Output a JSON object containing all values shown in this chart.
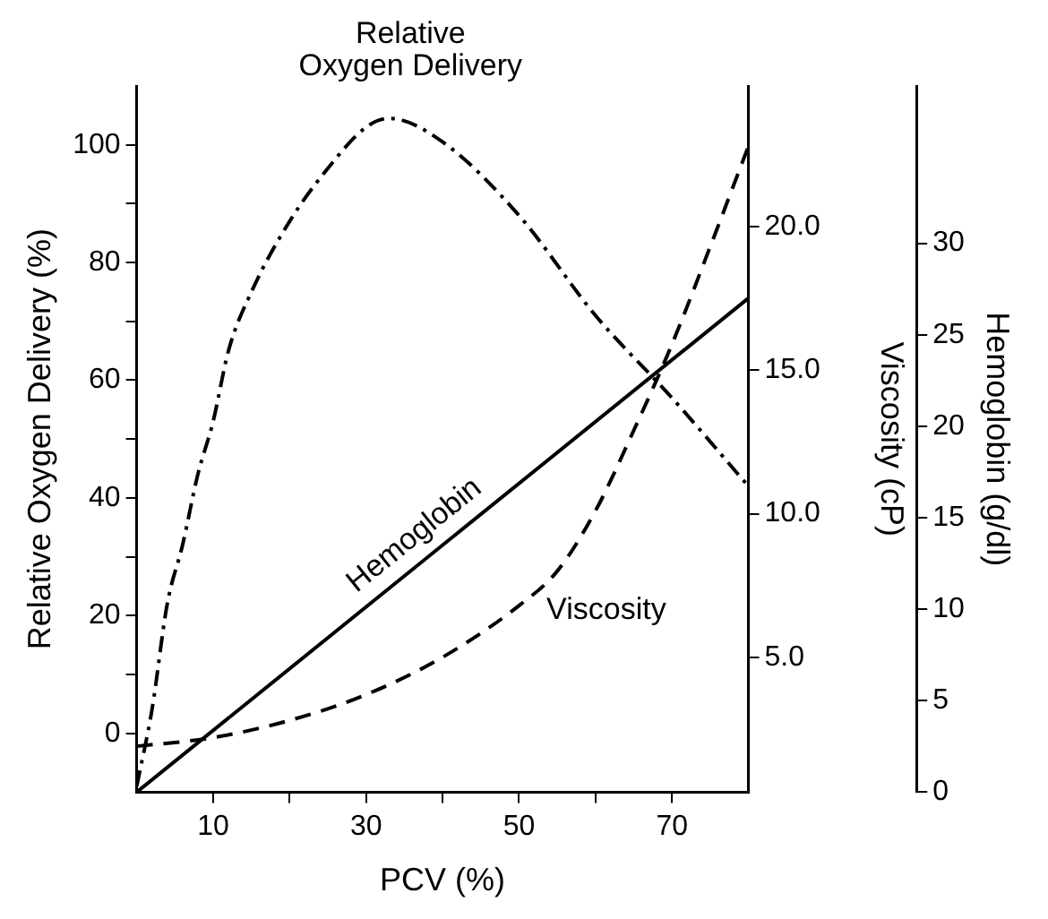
{
  "chart_data": {
    "type": "line",
    "xlabel": "PCV (%)",
    "ylabel": "Relative Oxygen Delivery (%)",
    "y2label": "Viscosity (cP)",
    "y3label": "Hemoglobin (g/dl)",
    "xlim": [
      0,
      80
    ],
    "xticks": [
      10,
      {
        "value": 20,
        "label": null
      },
      30,
      {
        "value": 40,
        "label": null
      },
      50,
      {
        "value": 60,
        "label": null
      },
      70
    ],
    "ylim": [
      -10,
      110
    ],
    "yticks": [
      0,
      {
        "value": 10,
        "label": null
      },
      20,
      {
        "value": 30,
        "label": null
      },
      40,
      {
        "value": 50,
        "label": null
      },
      60,
      {
        "value": 70,
        "label": null
      },
      80,
      {
        "value": 90,
        "label": null
      },
      100
    ],
    "y2lim": [
      0.3,
      24.9
    ],
    "y2ticks": [
      {
        "value": 5,
        "label": "5.0"
      },
      {
        "value": 10,
        "label": "10.0"
      },
      {
        "value": 15,
        "label": "15.0"
      },
      {
        "value": 20,
        "label": "20.0"
      }
    ],
    "y3lim": [
      0,
      38.6
    ],
    "y3ticks": [
      0,
      5,
      10,
      15,
      20,
      25,
      30
    ],
    "grid": false,
    "legend": false,
    "marker": "none",
    "series": [
      {
        "name": "Relative Oxygen Delivery",
        "color": "#000000",
        "line_style": "dashdot",
        "x": [
          0,
          2,
          4,
          6,
          8,
          10,
          12,
          15,
          20,
          25,
          30,
          33,
          40,
          50,
          60,
          70,
          80
        ],
        "values": [
          -9,
          4,
          22,
          32,
          44,
          53,
          65,
          75,
          87,
          96,
          103,
          104.5,
          100.5,
          88,
          71,
          57,
          42
        ]
      },
      {
        "name": "Hemoglobin",
        "color": "#000000",
        "line_style": "solid",
        "axis": "y3",
        "x": [
          0,
          80
        ],
        "values": [
          0,
          27
        ]
      },
      {
        "name": "Viscosity",
        "color": "#000000",
        "line_style": "dashed",
        "axis": "y2",
        "x": [
          0,
          10,
          20,
          30,
          40,
          50,
          55,
          60,
          65,
          70,
          75,
          80
        ],
        "values": [
          1.9,
          2.2,
          2.8,
          3.7,
          5.0,
          6.8,
          8.0,
          10.1,
          12.9,
          15.9,
          19.3,
          22.8
        ]
      }
    ]
  }
}
